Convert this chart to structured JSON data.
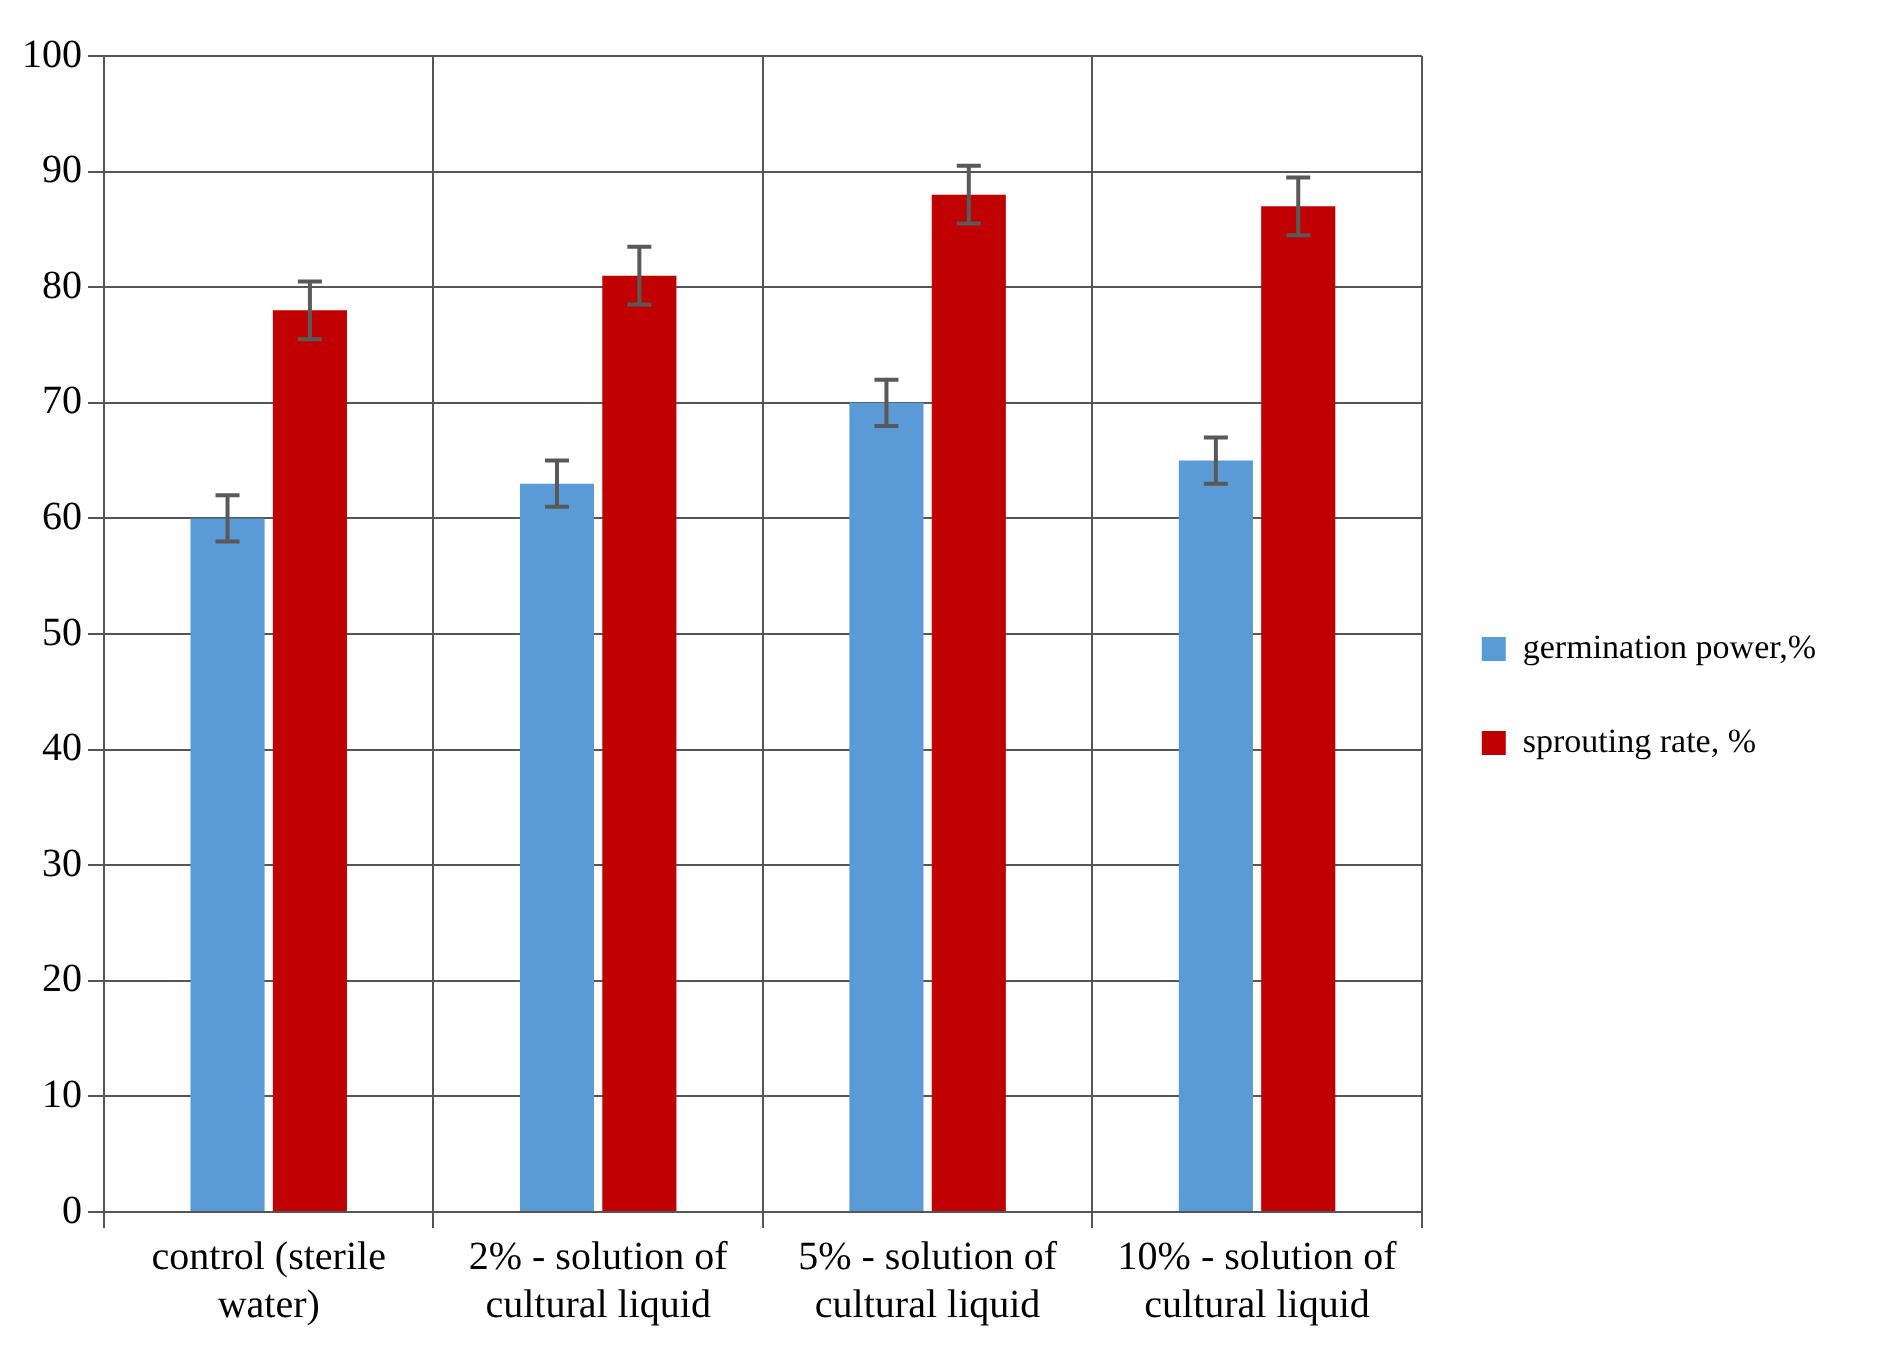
{
  "chart_data": {
    "type": "bar",
    "categories": [
      "control (sterile water)",
      "2% - solution of cultural liquid",
      "5% - solution of cultural liquid",
      "10% - solution of cultural liquid"
    ],
    "series": [
      {
        "name": "germination power,%",
        "color": "#5b9bd5",
        "values": [
          60,
          63,
          70,
          65
        ],
        "errors": [
          2,
          2,
          2,
          2
        ]
      },
      {
        "name": "sprouting rate, %",
        "color": "#c00000",
        "values": [
          78,
          81,
          88,
          87
        ],
        "errors": [
          2.5,
          2.5,
          2.5,
          2.5
        ]
      }
    ],
    "ylim": [
      0,
      100
    ],
    "yticks": [
      0,
      10,
      20,
      30,
      40,
      50,
      60,
      70,
      80,
      90,
      100
    ],
    "grid": true,
    "legend": "right"
  }
}
